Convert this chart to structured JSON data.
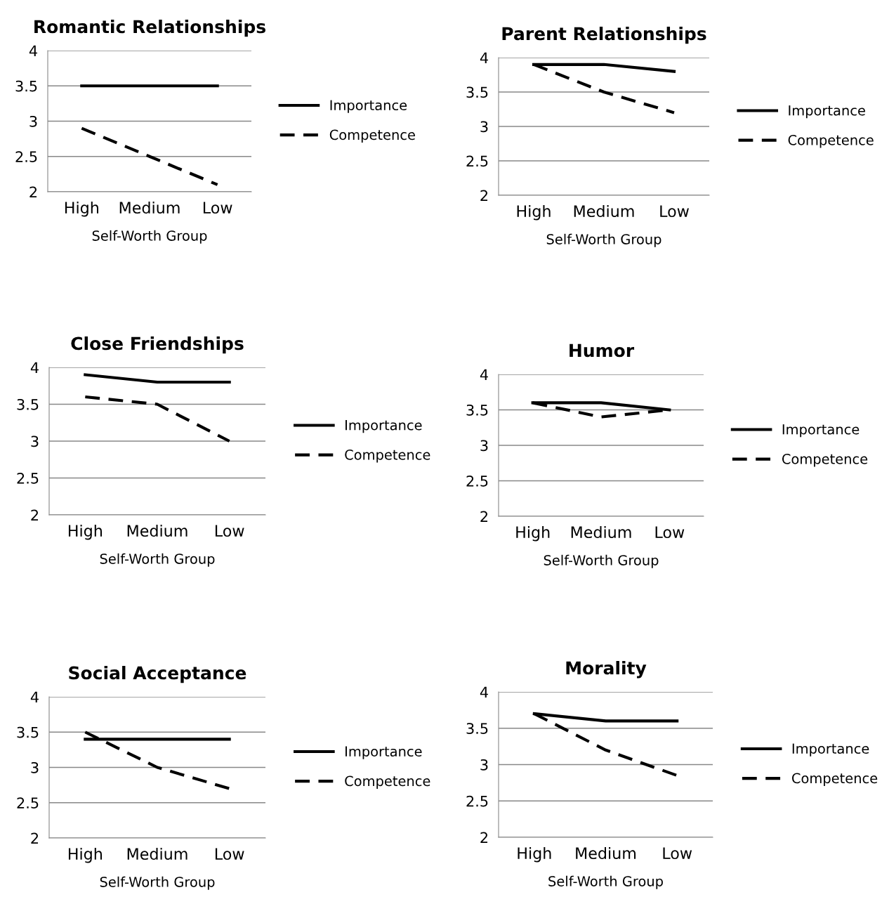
{
  "chart_data": [
    {
      "type": "line",
      "title": "Romantic Relationships",
      "xlabel": "Self-Worth Group",
      "categories": [
        "High",
        "Medium",
        "Low"
      ],
      "ylim": [
        2,
        4
      ],
      "yticks": [
        2,
        2.5,
        3,
        3.5,
        4
      ],
      "grid": "y",
      "legend": "right",
      "series": [
        {
          "name": "Importance",
          "color": "#000000",
          "line_style": "solid",
          "values": [
            3.5,
            3.5,
            3.5
          ]
        },
        {
          "name": "Competence",
          "color": "#000000",
          "line_style": "dashed",
          "values": [
            2.9,
            2.5,
            2.1
          ]
        }
      ]
    },
    {
      "type": "line",
      "title": "Parent Relationships",
      "xlabel": "Self-Worth Group",
      "categories": [
        "High",
        "Medium",
        "Low"
      ],
      "ylim": [
        2,
        4
      ],
      "yticks": [
        2,
        2.5,
        3,
        3.5,
        4
      ],
      "grid": "y",
      "legend": "right",
      "series": [
        {
          "name": "Importance",
          "color": "#000000",
          "line_style": "solid",
          "values": [
            3.9,
            3.9,
            3.8
          ]
        },
        {
          "name": "Competence",
          "color": "#000000",
          "line_style": "dashed",
          "values": [
            3.9,
            3.5,
            3.2
          ]
        }
      ]
    },
    {
      "type": "line",
      "title": "Close Friendships",
      "xlabel": "Self-Worth Group",
      "categories": [
        "High",
        "Medium",
        "Low"
      ],
      "ylim": [
        2,
        4
      ],
      "yticks": [
        2,
        2.5,
        3,
        3.5,
        4
      ],
      "grid": "y",
      "legend": "right",
      "series": [
        {
          "name": "Importance",
          "color": "#000000",
          "line_style": "solid",
          "values": [
            3.9,
            3.8,
            3.8
          ]
        },
        {
          "name": "Competence",
          "color": "#000000",
          "line_style": "dashed",
          "values": [
            3.6,
            3.5,
            3.0
          ]
        }
      ]
    },
    {
      "type": "line",
      "title": "Humor",
      "xlabel": "Self-Worth Group",
      "categories": [
        "High",
        "Medium",
        "Low"
      ],
      "ylim": [
        2,
        4
      ],
      "yticks": [
        2,
        2.5,
        3,
        3.5,
        4
      ],
      "grid": "y",
      "legend": "right",
      "series": [
        {
          "name": "Importance",
          "color": "#000000",
          "line_style": "solid",
          "values": [
            3.6,
            3.6,
            3.5
          ]
        },
        {
          "name": "Competence",
          "color": "#000000",
          "line_style": "dashed",
          "values": [
            3.6,
            3.4,
            3.5
          ]
        }
      ]
    },
    {
      "type": "line",
      "title": "Social Acceptance",
      "xlabel": "Self-Worth Group",
      "categories": [
        "High",
        "Medium",
        "Low"
      ],
      "ylim": [
        2,
        4
      ],
      "yticks": [
        2,
        2.5,
        3,
        3.5,
        4
      ],
      "grid": "y",
      "legend": "right",
      "series": [
        {
          "name": "Importance",
          "color": "#000000",
          "line_style": "solid",
          "values": [
            3.4,
            3.4,
            3.4
          ]
        },
        {
          "name": "Competence",
          "color": "#000000",
          "line_style": "dashed",
          "values": [
            3.5,
            3.0,
            2.7
          ]
        }
      ]
    },
    {
      "type": "line",
      "title": "Morality",
      "xlabel": "Self-Worth Group",
      "categories": [
        "High",
        "Medium",
        "Low"
      ],
      "ylim": [
        2,
        4
      ],
      "yticks": [
        2,
        2.5,
        3,
        3.5,
        4
      ],
      "grid": "y",
      "legend": "right",
      "series": [
        {
          "name": "Importance",
          "color": "#000000",
          "line_style": "solid",
          "values": [
            3.7,
            3.6,
            3.6
          ]
        },
        {
          "name": "Competence",
          "color": "#000000",
          "line_style": "dashed",
          "values": [
            3.7,
            3.2,
            2.85
          ]
        }
      ]
    }
  ]
}
